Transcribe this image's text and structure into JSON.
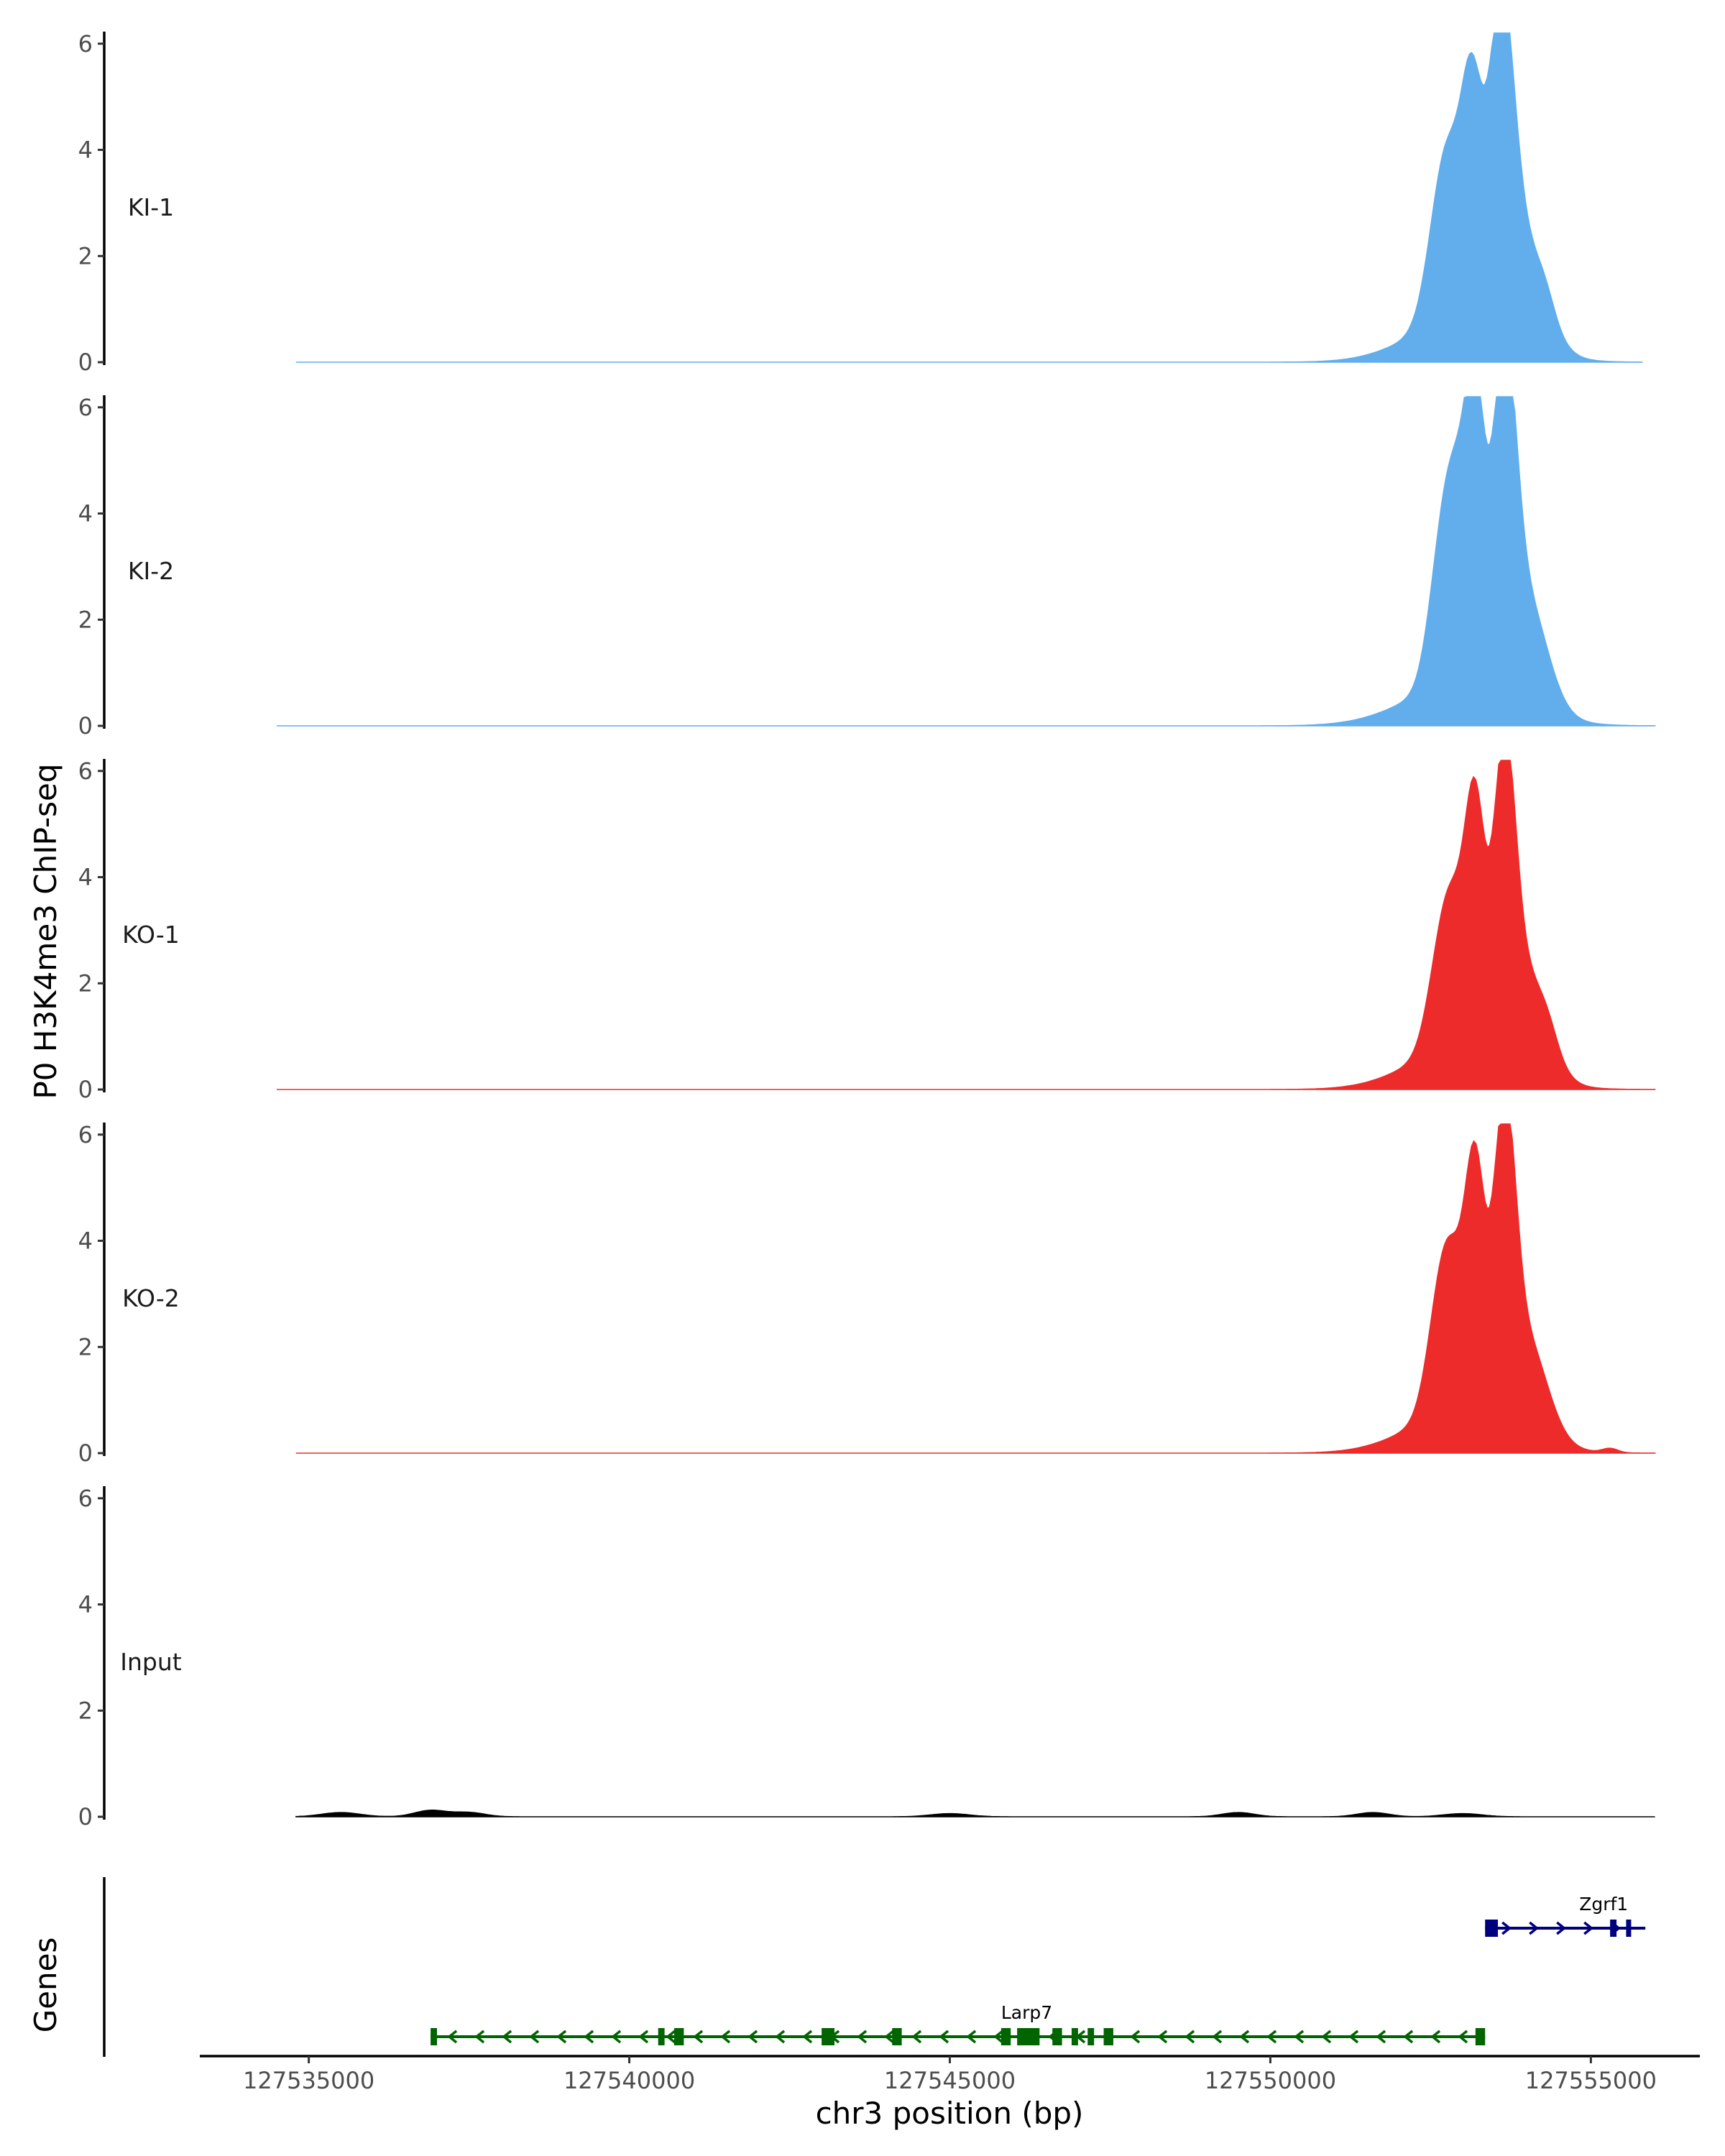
{
  "chart_data": {
    "type": "area",
    "title": "",
    "ylabel": "P0 H3K4me3 ChIP-seq",
    "xlabel": "chr3 position (bp)",
    "genes_label": "Genes",
    "ylim": [
      0,
      6.2
    ],
    "yticks": [
      0,
      2,
      4,
      6
    ],
    "xlim": [
      127533300,
      127556700
    ],
    "xticks": [
      127535000,
      127540000,
      127545000,
      127550000,
      127555000
    ],
    "xtick_labels": [
      "127535000",
      "127540000",
      "127545000",
      "127550000",
      "127555000"
    ],
    "tracks": [
      {
        "name": "KI-1",
        "color": "#62AEEC",
        "x_start": 127534800,
        "x_end": 127555800,
        "peaks": [
          [
            127552700,
            2.55,
            230
          ],
          [
            127552900,
            1.0,
            200
          ],
          [
            127553150,
            3.7,
            160
          ],
          [
            127553600,
            5.0,
            190
          ],
          [
            127553900,
            2.0,
            350
          ],
          [
            127553000,
            0.8,
            800
          ],
          [
            127554300,
            0.3,
            150
          ]
        ]
      },
      {
        "name": "KI-2",
        "color": "#62AEEC",
        "x_start": 127534500,
        "x_end": 127556000,
        "peaks": [
          [
            127552700,
            2.75,
            210
          ],
          [
            127552950,
            2.3,
            180
          ],
          [
            127553200,
            4.75,
            150
          ],
          [
            127553650,
            5.65,
            180
          ],
          [
            127554000,
            2.0,
            320
          ],
          [
            127553000,
            0.8,
            850
          ]
        ]
      },
      {
        "name": "KO-1",
        "color": "#EE2B2B",
        "x_start": 127534500,
        "x_end": 127556000,
        "peaks": [
          [
            127552700,
            2.05,
            220
          ],
          [
            127552950,
            1.5,
            200
          ],
          [
            127553200,
            4.0,
            150
          ],
          [
            127553650,
            5.2,
            170
          ],
          [
            127554000,
            1.8,
            320
          ],
          [
            127553000,
            0.8,
            800
          ],
          [
            127554350,
            0.25,
            150
          ]
        ]
      },
      {
        "name": "KO-2",
        "color": "#EE2B2B",
        "x_start": 127534800,
        "x_end": 127556000,
        "peaks": [
          [
            127552700,
            2.55,
            220
          ],
          [
            127552950,
            1.2,
            200
          ],
          [
            127553200,
            4.1,
            150
          ],
          [
            127553650,
            5.25,
            170
          ],
          [
            127554000,
            1.8,
            320
          ],
          [
            127553000,
            0.8,
            800
          ],
          [
            127555300,
            0.08,
            120
          ]
        ]
      },
      {
        "name": "Input",
        "color": "#000000",
        "x_start": 127534800,
        "x_end": 127556000,
        "peaks": [
          [
            127535500,
            0.08,
            300
          ],
          [
            127536900,
            0.12,
            250
          ],
          [
            127537500,
            0.08,
            250
          ],
          [
            127545000,
            0.06,
            300
          ],
          [
            127549500,
            0.08,
            250
          ],
          [
            127551600,
            0.08,
            250
          ],
          [
            127553000,
            0.06,
            300
          ]
        ]
      }
    ],
    "genes": [
      {
        "name": "Zgrf1",
        "color": "#00007F",
        "strand": "+",
        "start": 127553350,
        "end": 127555850,
        "row": 0,
        "exons": [
          [
            127553350,
            127553550
          ],
          [
            127555300,
            127555400
          ],
          [
            127555550,
            127555620
          ]
        ]
      },
      {
        "name": "Larp7",
        "color": "#006400",
        "strand": "-",
        "start": 127536900,
        "end": 127553350,
        "row": 1,
        "exons": [
          [
            127536900,
            127537000
          ],
          [
            127540450,
            127540550
          ],
          [
            127540700,
            127540850
          ],
          [
            127543000,
            127543200
          ],
          [
            127544100,
            127544250
          ],
          [
            127545800,
            127545950
          ],
          [
            127546050,
            127546400
          ],
          [
            127546600,
            127546750
          ],
          [
            127546900,
            127547000
          ],
          [
            127547150,
            127547250
          ],
          [
            127547400,
            127547550
          ],
          [
            127553200,
            127553350
          ]
        ]
      }
    ]
  }
}
